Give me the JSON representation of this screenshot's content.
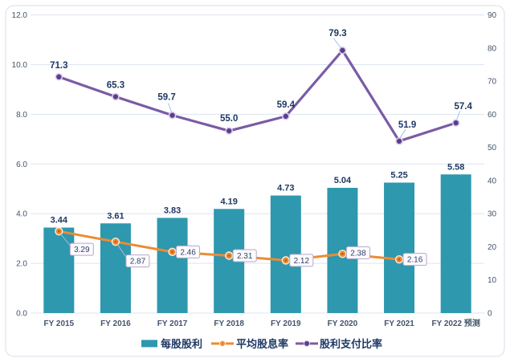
{
  "chart_data": {
    "type": "bar",
    "subtype": "combo-bar-line-dual-axis",
    "title": "",
    "categories": [
      "FY 2015",
      "FY 2016",
      "FY 2017",
      "FY 2018",
      "FY 2019",
      "FY 2020",
      "FY 2021",
      "FY 2022 预测"
    ],
    "series": [
      {
        "name": "每股股利",
        "chart": "bar",
        "axis": "left",
        "color": "#2D98AE",
        "values": [
          3.44,
          3.61,
          3.83,
          4.19,
          4.73,
          5.04,
          5.25,
          5.58
        ],
        "labels": [
          "3.44",
          "3.61",
          "3.83",
          "4.19",
          "4.73",
          "5.04",
          "5.25",
          "5.58"
        ]
      },
      {
        "name": "平均股息率",
        "chart": "line",
        "axis": "left",
        "color": "#ED8B33",
        "values": [
          3.29,
          2.87,
          2.46,
          2.31,
          2.12,
          2.38,
          2.16
        ],
        "labels": [
          "3.29",
          "2.87",
          "2.46",
          "2.31",
          "2.12",
          "2.38",
          "2.16"
        ]
      },
      {
        "name": "股利支付比率",
        "chart": "line",
        "axis": "right",
        "color": "#7A5BA6",
        "values": [
          71.3,
          65.3,
          59.7,
          55.0,
          59.4,
          79.3,
          51.9,
          57.4
        ],
        "labels": [
          "71.3",
          "65.3",
          "59.7",
          "55.0",
          "59.4",
          "79.3",
          "51.9",
          "57.4"
        ]
      }
    ],
    "left_axis": {
      "min": 0,
      "max": 12,
      "step": 2,
      "tick_labels": [
        "0.0",
        "2.0",
        "4.0",
        "6.0",
        "8.0",
        "10.0",
        "12.0"
      ]
    },
    "right_axis": {
      "min": 0,
      "max": 90,
      "step": 10,
      "tick_labels": [
        "0",
        "10",
        "20",
        "30",
        "40",
        "50",
        "60",
        "70",
        "80",
        "90"
      ]
    },
    "grid": true,
    "legend_position": "bottom",
    "colors": {
      "data_label": "#1F3864",
      "axis_text": "#44546A",
      "gridline": "#DCE5F1",
      "card_border": "#D7DDE8",
      "callout_box_fill": "#FCFBFE",
      "callout_box_border": "#B6A7CC",
      "leader_blue": "#9DC3E6",
      "leader_gray": "#B9B0CF",
      "purple_marker_fill": "#5C3D92",
      "purple_marker_ring": "#D8D1E5",
      "orange_marker_ring": "#FDEBDA"
    }
  }
}
